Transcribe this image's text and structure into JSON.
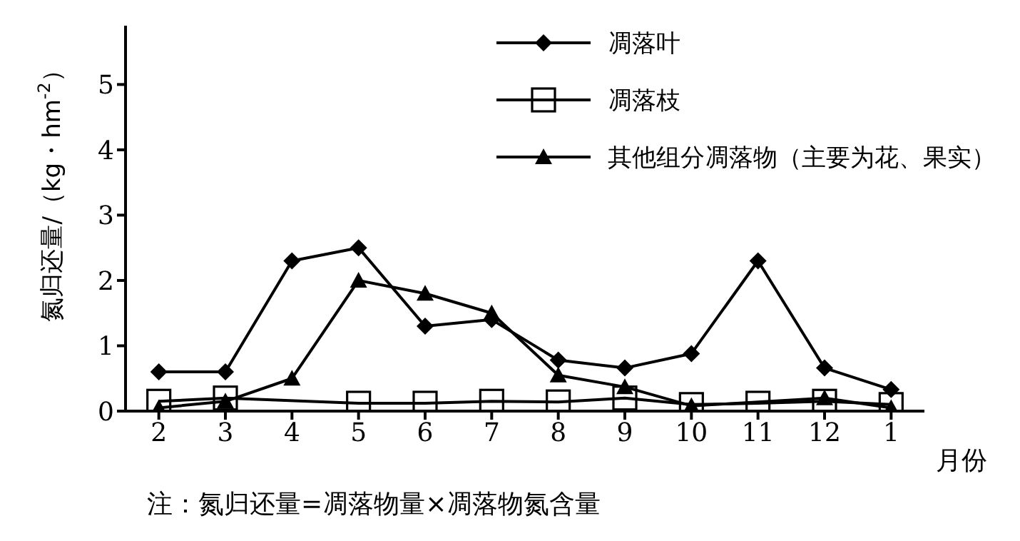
{
  "chart_data": {
    "type": "line",
    "xlabel": "月份",
    "ylabel": "氮归还量/（kg・hm$^{-2}$）",
    "categories": [
      "2",
      "3",
      "4",
      "5",
      "6",
      "7",
      "8",
      "9",
      "10",
      "11",
      "12",
      "1"
    ],
    "ylim": [
      0,
      5.9
    ],
    "yticks": [
      0,
      1,
      2,
      3,
      4,
      5
    ],
    "grid": false,
    "legend": "top right",
    "annotations": [
      "注：氮归还量=凋落物量×凋落物氮含量"
    ],
    "series": [
      {
        "name": "凋落叶",
        "color": "#000000",
        "marker": "diamond",
        "values": [
          0.6,
          0.6,
          2.3,
          2.5,
          1.3,
          1.4,
          0.78,
          0.66,
          0.88,
          2.3,
          0.66,
          0.33
        ]
      },
      {
        "name": "凋落枝",
        "color": "#000000",
        "marker": "square",
        "values": [
          0.15,
          0.2,
          null,
          0.12,
          0.12,
          0.15,
          0.14,
          0.2,
          0.1,
          0.12,
          0.15,
          0.1
        ]
      },
      {
        "name": "其他组分凋落物（主要为花、果实）",
        "color": "#000000",
        "marker": "triangle",
        "values": [
          0.05,
          0.15,
          0.5,
          2.0,
          1.8,
          1.5,
          0.55,
          0.37,
          0.08,
          null,
          0.2,
          0.05
        ]
      }
    ]
  }
}
